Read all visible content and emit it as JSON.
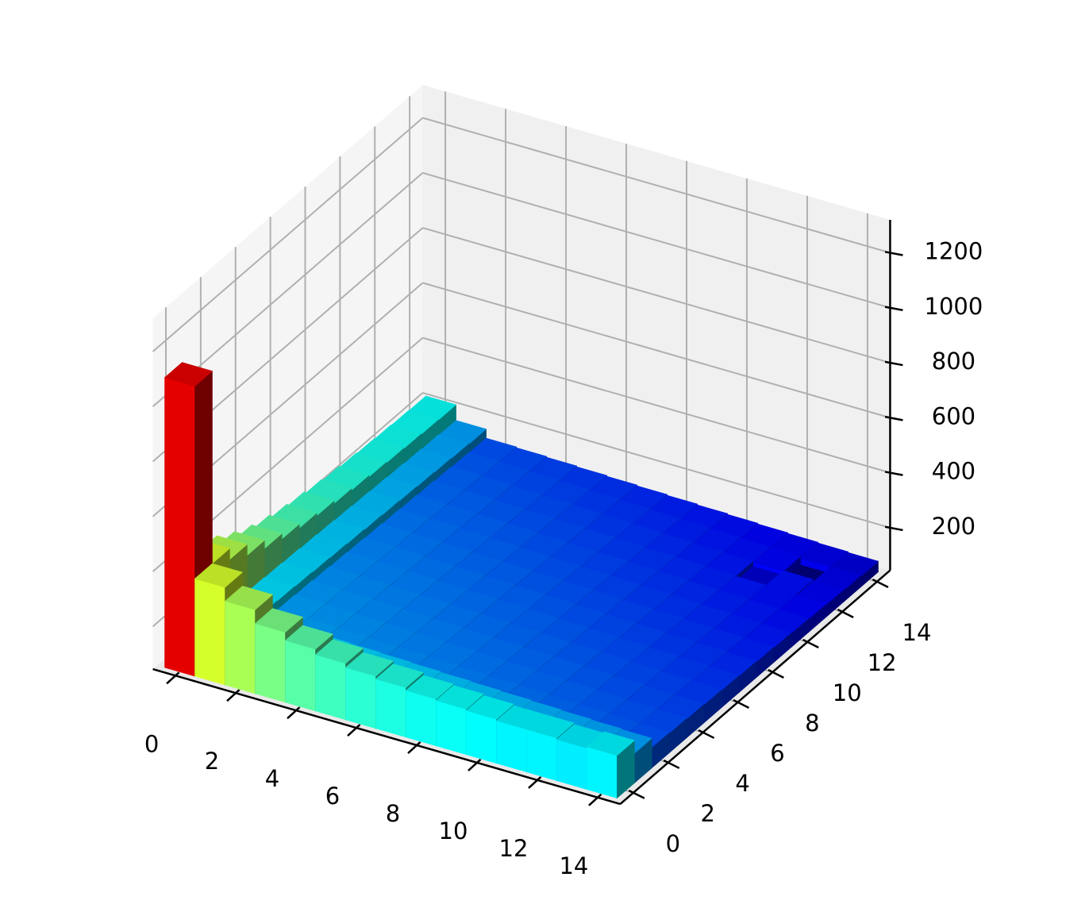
{
  "chart_data": {
    "type": "bar3d",
    "x": [
      0,
      1,
      2,
      3,
      4,
      5,
      6,
      7,
      8,
      9,
      10,
      11,
      12,
      13,
      14
    ],
    "y": [
      0,
      1,
      2,
      3,
      4,
      5,
      6,
      7,
      8,
      9,
      10,
      11,
      12,
      13,
      14
    ],
    "z": [
      [
        1100,
        400,
        350,
        300,
        270,
        250,
        235,
        225,
        215,
        210,
        205,
        200,
        200,
        195,
        200
      ],
      [
        400,
        192,
        189,
        186,
        183,
        180,
        177,
        174,
        171,
        168,
        165,
        162,
        159,
        156,
        153
      ],
      [
        360,
        189,
        156,
        153,
        150,
        147,
        144,
        141,
        138,
        135,
        132,
        129,
        126,
        123,
        120
      ],
      [
        320,
        186,
        153,
        150,
        147,
        144,
        141,
        138,
        135,
        132,
        129,
        126,
        123,
        120,
        117
      ],
      [
        290,
        183,
        150,
        147,
        144,
        141,
        138,
        135,
        132,
        129,
        126,
        123,
        120,
        117,
        114
      ],
      [
        270,
        180,
        147,
        144,
        141,
        138,
        135,
        132,
        129,
        126,
        123,
        120,
        117,
        114,
        111
      ],
      [
        255,
        177,
        144,
        141,
        138,
        135,
        132,
        129,
        126,
        123,
        120,
        117,
        114,
        111,
        108
      ],
      [
        245,
        174,
        141,
        138,
        135,
        132,
        129,
        126,
        123,
        120,
        117,
        114,
        111,
        108,
        105
      ],
      [
        235,
        171,
        138,
        135,
        132,
        129,
        126,
        123,
        120,
        117,
        114,
        111,
        108,
        105,
        102
      ],
      [
        228,
        168,
        135,
        132,
        129,
        126,
        123,
        120,
        117,
        114,
        111,
        108,
        105,
        102,
        99
      ],
      [
        222,
        165,
        132,
        129,
        126,
        123,
        120,
        117,
        114,
        111,
        108,
        105,
        102,
        99,
        96
      ],
      [
        218,
        162,
        129,
        126,
        123,
        120,
        117,
        114,
        111,
        108,
        105,
        102,
        99,
        96,
        93
      ],
      [
        215,
        159,
        126,
        123,
        120,
        117,
        114,
        111,
        108,
        105,
        102,
        99,
        80,
        96,
        90
      ],
      [
        212,
        156,
        123,
        120,
        117,
        114,
        111,
        108,
        105,
        102,
        99,
        96,
        93,
        62,
        87
      ],
      [
        210,
        153,
        120,
        117,
        114,
        111,
        108,
        105,
        102,
        99,
        96,
        93,
        90,
        87,
        84
      ]
    ],
    "colormap": "jet",
    "xlim": [
      -0.75,
      14.75
    ],
    "ylim": [
      -0.75,
      14.75
    ],
    "zlim": [
      45,
      1320
    ],
    "xticks": [
      0,
      2,
      4,
      6,
      8,
      10,
      12,
      14
    ],
    "yticks": [
      0,
      2,
      4,
      6,
      8,
      10,
      12,
      14
    ],
    "zticks": [
      200,
      400,
      600,
      800,
      1000,
      1200
    ],
    "grid": true
  }
}
